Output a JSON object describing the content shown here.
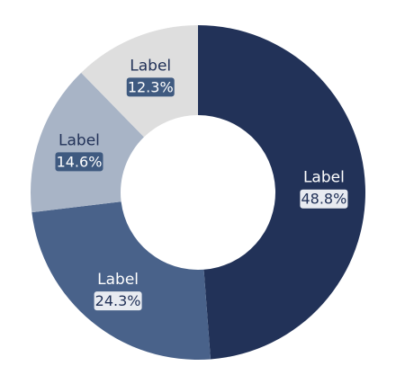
{
  "chart_data": {
    "type": "pie",
    "donut": true,
    "slices": [
      {
        "label": "Label",
        "value": 48.8,
        "value_text": "48.8%",
        "color": "#223258"
      },
      {
        "label": "Label",
        "value": 24.3,
        "value_text": "24.3%",
        "color": "#49628a"
      },
      {
        "label": "Label",
        "value": 14.6,
        "value_text": "14.6%",
        "color": "#a8b4c6"
      },
      {
        "label": "Label",
        "value": 12.3,
        "value_text": "12.3%",
        "color": "#dedede"
      }
    ],
    "start_angle_deg": 0,
    "direction": "clockwise",
    "legend": "none"
  }
}
